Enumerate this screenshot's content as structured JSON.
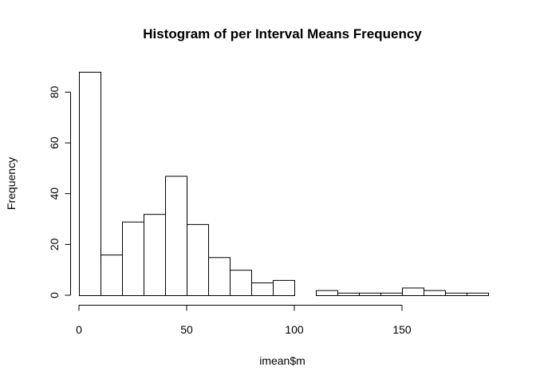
{
  "chart_data": {
    "type": "bar",
    "title": "Histogram of per Interval Means Frequency",
    "xlabel": "imean$m",
    "ylabel": "Frequency",
    "bin_edges": [
      0,
      10,
      20,
      30,
      40,
      50,
      60,
      70,
      80,
      90,
      100,
      110,
      120,
      130,
      140,
      150,
      160,
      170,
      180,
      190
    ],
    "counts": [
      88,
      16,
      29,
      32,
      47,
      28,
      15,
      10,
      5,
      6,
      0,
      2,
      1,
      1,
      1,
      3,
      2,
      1,
      1
    ],
    "xlim": [
      0,
      190
    ],
    "ylim": [
      0,
      88
    ],
    "x_ticks": [
      0,
      50,
      100,
      150
    ],
    "y_ticks": [
      0,
      20,
      40,
      60,
      80
    ],
    "grid": false,
    "legend": "none"
  }
}
